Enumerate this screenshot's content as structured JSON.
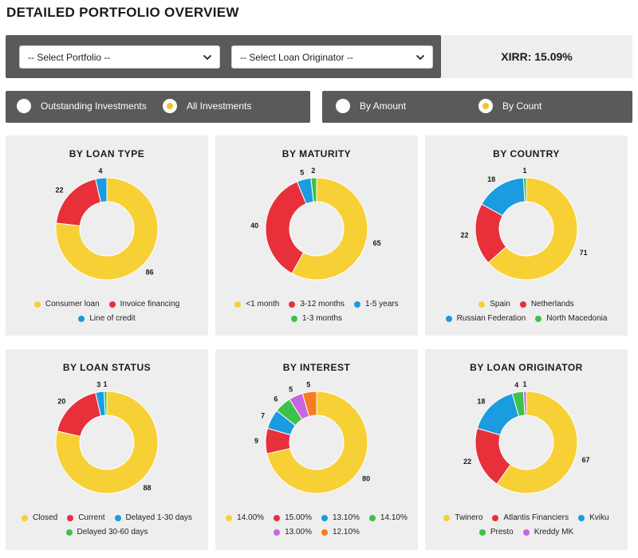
{
  "page": {
    "title": "DETAILED PORTFOLIO OVERVIEW"
  },
  "filters": {
    "portfolio_select": "-- Select Portfolio --",
    "originator_select": "-- Select Loan Originator --",
    "xirr": "XIRR: 15.09%"
  },
  "investment_toggle": {
    "options": [
      {
        "label": "Outstanding Investments",
        "selected": false
      },
      {
        "label": "All Investments",
        "selected": true
      }
    ]
  },
  "measure_toggle": {
    "options": [
      {
        "label": "By Amount",
        "selected": false
      },
      {
        "label": "By Count",
        "selected": true
      }
    ]
  },
  "colors": {
    "yellow": "#f7d035",
    "red": "#e8303a",
    "blue": "#1b9be0",
    "green": "#3cc24a",
    "purple": "#c866e0",
    "orange": "#f57c1f"
  },
  "chart_data": [
    {
      "type": "pie",
      "title": "BY LOAN TYPE",
      "categories": [
        "Consumer loan",
        "Invoice financing",
        "Line of credit"
      ],
      "values": [
        86,
        22,
        4
      ],
      "colors": [
        "#f7d035",
        "#e8303a",
        "#1b9be0"
      ]
    },
    {
      "type": "pie",
      "title": "BY MATURITY",
      "categories": [
        "<1 month",
        "3-12 months",
        "1-5 years",
        "1-3 months"
      ],
      "values": [
        65,
        40,
        5,
        2
      ],
      "colors": [
        "#f7d035",
        "#e8303a",
        "#1b9be0",
        "#3cc24a"
      ]
    },
    {
      "type": "pie",
      "title": "BY COUNTRY",
      "categories": [
        "Spain",
        "Netherlands",
        "Russian Federation",
        "North Macedonia"
      ],
      "values": [
        71,
        22,
        18,
        1
      ],
      "colors": [
        "#f7d035",
        "#e8303a",
        "#1b9be0",
        "#3cc24a"
      ]
    },
    {
      "type": "pie",
      "title": "BY LOAN STATUS",
      "categories": [
        "Closed",
        "Current",
        "Delayed 1-30 days",
        "Delayed 30-60 days"
      ],
      "values": [
        88,
        20,
        3,
        1
      ],
      "colors": [
        "#f7d035",
        "#e8303a",
        "#1b9be0",
        "#3cc24a"
      ]
    },
    {
      "type": "pie",
      "title": "BY INTEREST",
      "categories": [
        "14.00%",
        "15.00%",
        "13.10%",
        "14.10%",
        "13.00%",
        "12.10%"
      ],
      "values": [
        80,
        9,
        7,
        6,
        5,
        5
      ],
      "colors": [
        "#f7d035",
        "#e8303a",
        "#1b9be0",
        "#3cc24a",
        "#c866e0",
        "#f57c1f"
      ]
    },
    {
      "type": "pie",
      "title": "BY LOAN ORIGINATOR",
      "categories": [
        "Twinero",
        "Atlantis Financiers",
        "Kviku",
        "Presto",
        "Kreddy MK"
      ],
      "values": [
        67,
        22,
        18,
        4,
        1
      ],
      "colors": [
        "#f7d035",
        "#e8303a",
        "#1b9be0",
        "#3cc24a",
        "#c866e0"
      ]
    }
  ]
}
